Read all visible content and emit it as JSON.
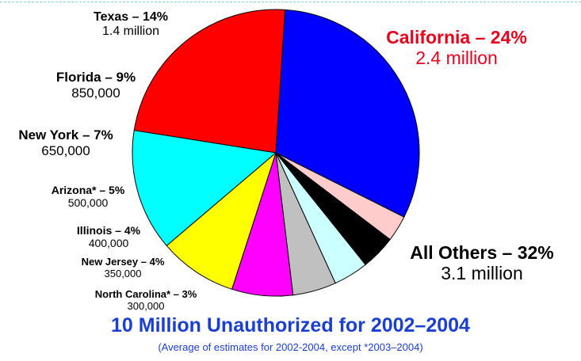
{
  "chart_data": {
    "type": "pie",
    "title": "10 Million Unauthorized for 2002–2004",
    "subtitle": "(Average of estimates for 2002-2004, except *2003–2004)",
    "slices": [
      {
        "name": "California – 24%",
        "percent": 24,
        "value_label": "2.4 million",
        "color": "#ff0000"
      },
      {
        "name": "All Others – 32%",
        "percent": 32,
        "value_label": "3.1 million",
        "color": "#0000ff"
      },
      {
        "name": "North Carolina* – 3%",
        "percent": 3,
        "value_label": "300,000",
        "color": "#ffcccc"
      },
      {
        "name": "New Jersey – 4%",
        "percent": 4,
        "value_label": "350,000",
        "color": "#000000"
      },
      {
        "name": "Illinois – 4%",
        "percent": 4,
        "value_label": "400,000",
        "color": "#ccffff"
      },
      {
        "name": "Arizona* – 5%",
        "percent": 5,
        "value_label": "500,000",
        "color": "#c0c0c0"
      },
      {
        "name": "New York – 7%",
        "percent": 7,
        "value_label": "650,000",
        "color": "#ff00ff"
      },
      {
        "name": "Florida – 9%",
        "percent": 9,
        "value_label": "850,000",
        "color": "#ffff00"
      },
      {
        "name": "Texas – 14%",
        "percent": 14,
        "value_label": "1.4 million",
        "color": "#00ffff"
      }
    ]
  }
}
